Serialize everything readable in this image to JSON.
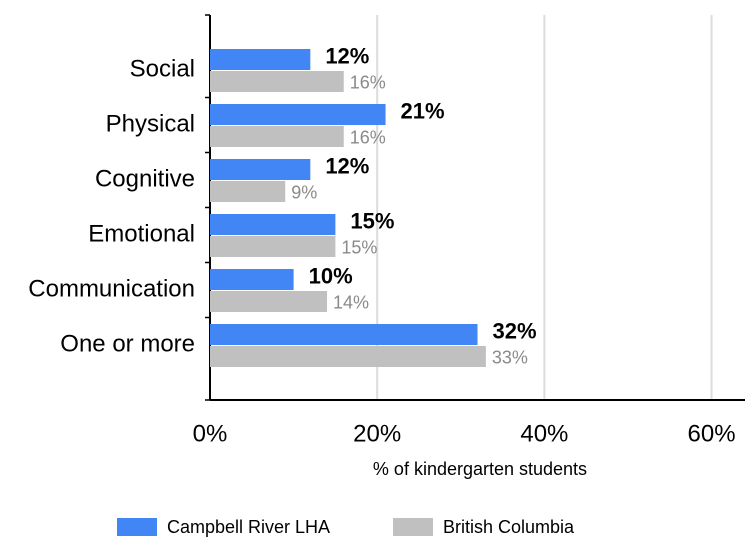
{
  "chart_data": {
    "type": "bar",
    "orientation": "horizontal",
    "x_label": "% of kindergarten students",
    "categories": [
      "Social",
      "Physical",
      "Cognitive",
      "Emotional",
      "Communication",
      "One or more"
    ],
    "series": [
      {
        "name": "Campbell River LHA",
        "color": "#4285f4",
        "values": [
          12,
          21,
          12,
          15,
          10,
          32
        ],
        "value_labels": [
          "12%",
          "21%",
          "12%",
          "15%",
          "10%",
          "32%"
        ]
      },
      {
        "name": "British Columbia",
        "color": "#c0c0c0",
        "values": [
          16,
          16,
          9,
          15,
          14,
          33
        ],
        "value_labels": [
          "16%",
          "16%",
          "9%",
          "15%",
          "14%",
          "33%"
        ]
      }
    ],
    "xlim": [
      0,
      64
    ],
    "xticks": [
      {
        "value": 0,
        "label": "0%"
      },
      {
        "value": 20,
        "label": "20%"
      },
      {
        "value": 40,
        "label": "40%"
      },
      {
        "value": 60,
        "label": "60%"
      }
    ],
    "grid": true,
    "legend": "bottom"
  }
}
